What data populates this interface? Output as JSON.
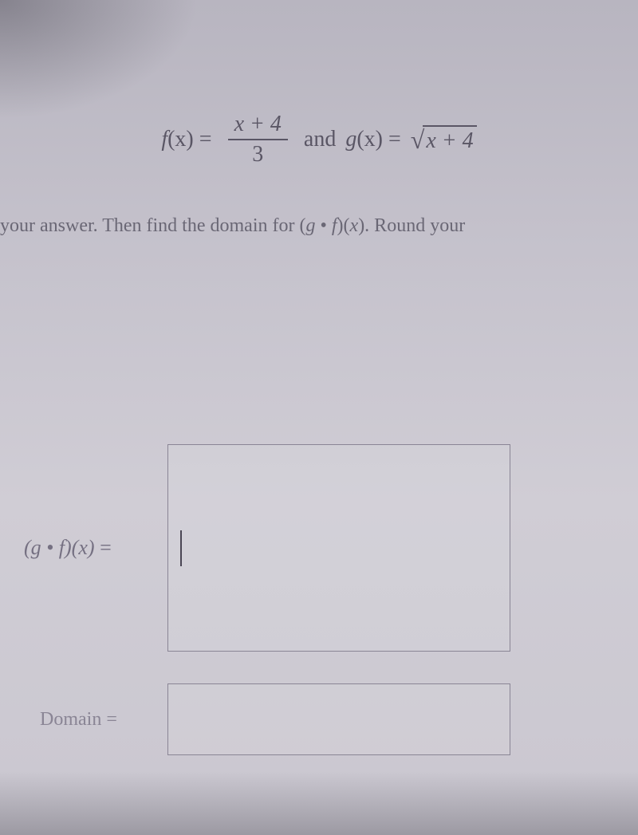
{
  "equation": {
    "f_label": "f",
    "f_arg": "(x)",
    "equals": " = ",
    "frac_numerator": "x + 4",
    "frac_denominator": "3",
    "and_text": " and ",
    "g_label": "g",
    "g_arg": "(x)",
    "sqrt_content": "x + 4"
  },
  "instruction": {
    "prefix": "your answer. Then find the domain for (",
    "g": "g",
    "dot": " • ",
    "f": "f",
    "suffix_paren": ")(",
    "x": "x",
    "close": "). Round your"
  },
  "answers": {
    "gf_label_open": "(",
    "gf_g": "g",
    "gf_dot": " • ",
    "gf_f": "f",
    "gf_close": ")(",
    "gf_x": "x",
    "gf_end": ")",
    "gf_equals": " = ",
    "domain_label": "Domain",
    "domain_equals": " = "
  },
  "styling": {
    "background_gradient_top": "#b8b5c0",
    "background_gradient_bottom": "#cac7d0",
    "text_color_primary": "#5a5665",
    "text_color_secondary": "#757082",
    "text_color_faded": "#8a8595",
    "border_color": "#8a8595",
    "equation_fontsize": 28,
    "instruction_fontsize": 24,
    "label_fontsize": 26,
    "input_large_width": 430,
    "input_large_height": 260,
    "input_small_width": 430,
    "input_small_height": 90
  }
}
